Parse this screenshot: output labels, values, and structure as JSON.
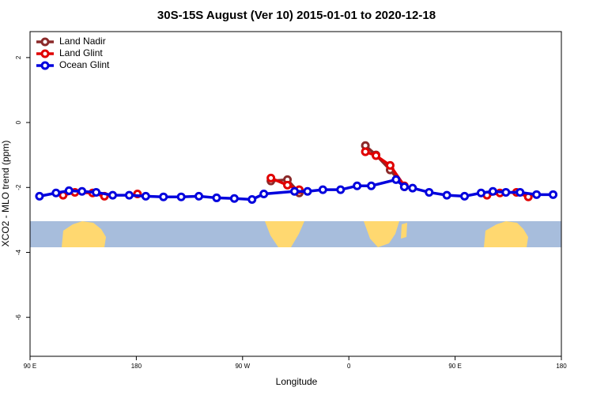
{
  "chart_data": {
    "type": "line",
    "title": "30S-15S August (Ver 10)   2015-01-01 to 2020-12-18",
    "xlabel": "Longitude",
    "ylabel": "XCO2 - MLO trend (ppm)",
    "xlim": [
      90,
      540
    ],
    "ylim": [
      -7.2,
      2.8
    ],
    "xticks": [
      {
        "value": 90,
        "label": "90 E"
      },
      180,
      {
        "value": 270,
        "label": "90 W"
      },
      {
        "value": 360,
        "label": "0"
      },
      {
        "value": 450,
        "label": "90 E"
      },
      {
        "value": 540,
        "label": "180"
      }
    ],
    "yticks": [
      -6,
      -4,
      -2,
      0,
      2
    ],
    "legend": "top-left",
    "series": [
      {
        "name": "Land Nadir",
        "color": "#8b2a2a",
        "x": [
          294,
          308,
          318,
          null,
          374,
          383,
          395,
          407
        ],
        "values": [
          -1.8,
          -1.76,
          -2.17,
          null,
          -0.71,
          -1.0,
          -1.46,
          -1.98
        ]
      },
      {
        "name": "Land Glint",
        "color": "#e00000",
        "x": [
          118,
          128,
          143,
          153,
          null,
          181,
          null,
          294,
          308,
          318,
          null,
          374,
          383,
          395,
          407,
          null,
          477,
          488,
          502,
          512
        ],
        "values": [
          -2.24,
          -2.15,
          -2.17,
          -2.27,
          null,
          -2.2,
          null,
          -1.71,
          -1.93,
          -2.07,
          null,
          -0.9,
          -1.02,
          -1.32,
          -1.95,
          null,
          -2.24,
          -2.17,
          -2.15,
          -2.29
        ]
      },
      {
        "name": "Ocean Glint",
        "color": "#0000dd",
        "x": [
          98,
          112,
          123,
          134,
          146,
          160,
          174,
          188,
          203,
          218,
          233,
          248,
          263,
          278,
          288,
          314,
          325,
          338,
          353,
          367,
          379,
          400,
          407,
          414,
          428,
          443,
          458,
          472,
          482,
          493,
          505,
          519,
          533
        ],
        "values": [
          -2.27,
          -2.17,
          -2.1,
          -2.12,
          -2.15,
          -2.24,
          -2.24,
          -2.27,
          -2.29,
          -2.29,
          -2.27,
          -2.32,
          -2.34,
          -2.37,
          -2.2,
          -2.12,
          -2.12,
          -2.07,
          -2.07,
          -1.95,
          -1.95,
          -1.76,
          -1.98,
          -2.02,
          -2.15,
          -2.24,
          -2.27,
          -2.17,
          -2.12,
          -2.15,
          -2.15,
          -2.22,
          -2.22
        ]
      }
    ]
  }
}
